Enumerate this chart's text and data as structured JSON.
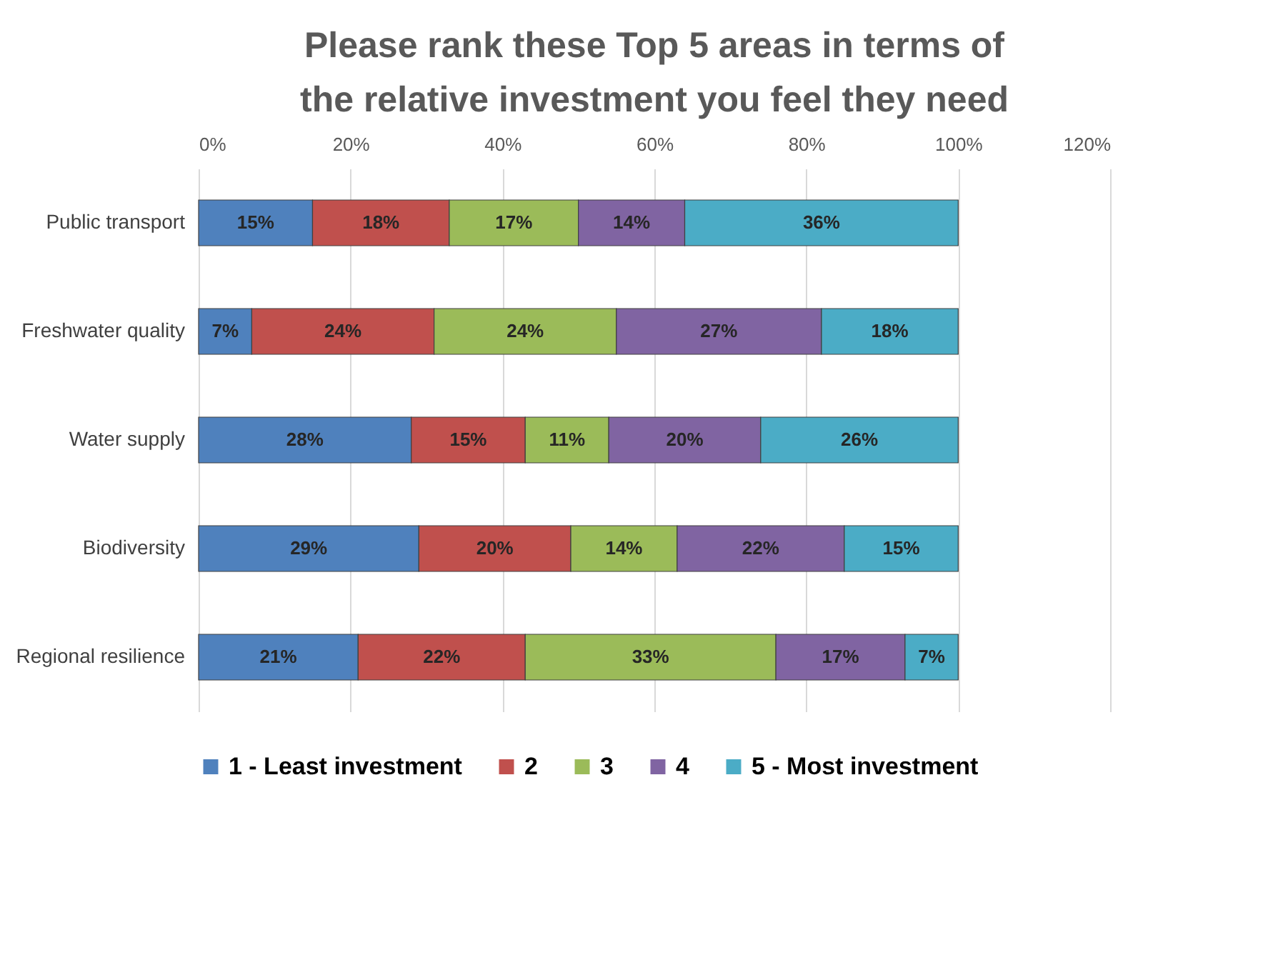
{
  "chart_data": {
    "type": "bar",
    "orientation": "horizontal",
    "stacked": true,
    "title": [
      "Please rank these Top 5 areas in terms of",
      "the relative investment you feel they need"
    ],
    "categories": [
      "Public transport",
      "Freshwater quality",
      "Water supply",
      "Biodiversity",
      "Regional resilience"
    ],
    "series": [
      {
        "name": "1 - Least investment",
        "color": "#4f81bd",
        "values": [
          15,
          7,
          28,
          29,
          21
        ],
        "value_labels": [
          "15%",
          "7%",
          "28%",
          "29%",
          "21%"
        ]
      },
      {
        "name": "2",
        "color": "#c0504d",
        "values": [
          18,
          24,
          15,
          20,
          22
        ],
        "value_labels": [
          "18%",
          "24%",
          "15%",
          "20%",
          "22%"
        ]
      },
      {
        "name": "3",
        "color": "#9bbb59",
        "values": [
          17,
          24,
          11,
          14,
          33
        ],
        "value_labels": [
          "17%",
          "24%",
          "11%",
          "14%",
          "33%"
        ]
      },
      {
        "name": "4",
        "color": "#8064a2",
        "values": [
          14,
          27,
          20,
          22,
          17
        ],
        "value_labels": [
          "14%",
          "27%",
          "20%",
          "22%",
          "17%"
        ]
      },
      {
        "name": "5 - Most investment",
        "color": "#4bacc6",
        "values": [
          36,
          18,
          26,
          15,
          7
        ],
        "value_labels": [
          "36%",
          "18%",
          "26%",
          "15%",
          "7%"
        ]
      }
    ],
    "xlim": [
      0,
      120
    ],
    "xticks": [
      {
        "value": 0,
        "label": "0%"
      },
      {
        "value": 20,
        "label": "20%"
      },
      {
        "value": 40,
        "label": "40%"
      },
      {
        "value": 60,
        "label": "60%"
      },
      {
        "value": 80,
        "label": "80%"
      },
      {
        "value": 100,
        "label": "100%"
      },
      {
        "value": 120,
        "label": "120%"
      }
    ],
    "grid": "x",
    "legend": "bottom"
  }
}
